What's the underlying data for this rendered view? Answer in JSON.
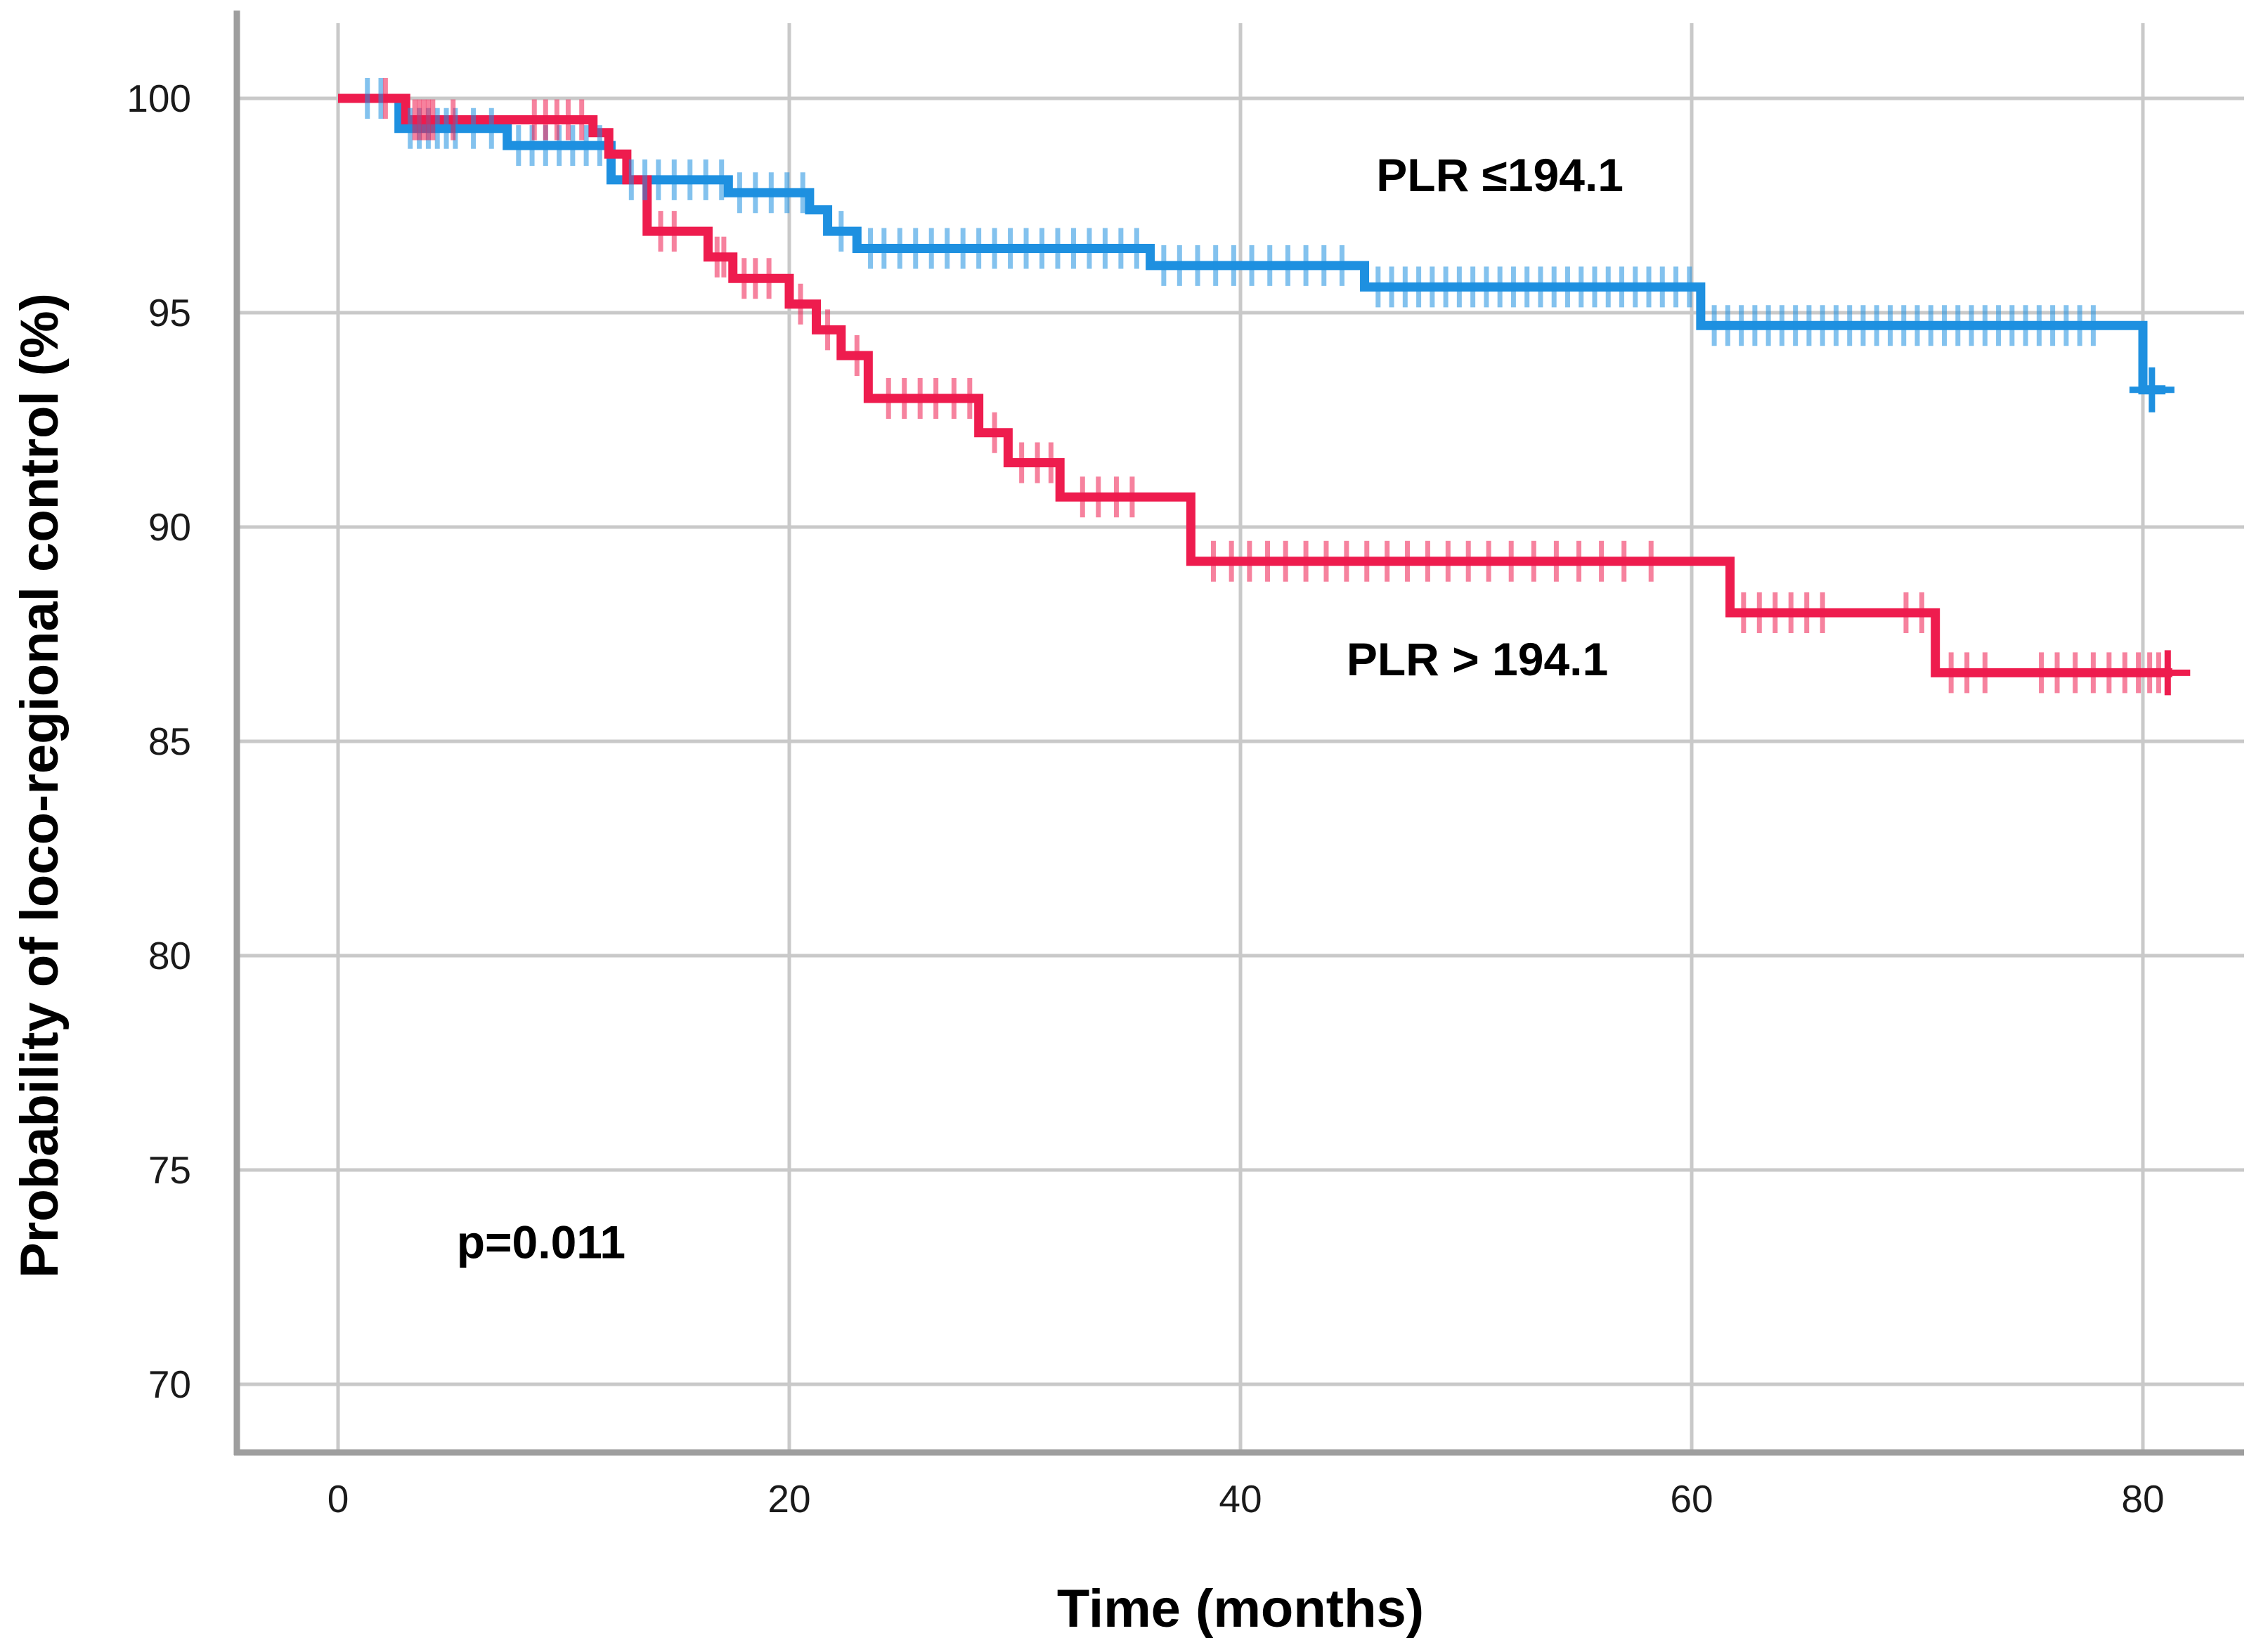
{
  "figure": {
    "x_axis_title": "Time (months)",
    "y_axis_title": "Probability of loco-regional control (%)",
    "p_value_label": "p=0.011",
    "series1_label": "PLR ≤194.1",
    "series2_label": "PLR > 194.1"
  },
  "chart_data": {
    "type": "line",
    "subtype": "kaplan-meier-step",
    "title": "",
    "xlabel": "Time (months)",
    "ylabel": "Probability of loco-regional control (%)",
    "xlim": [
      -4.5,
      84.6
    ],
    "ylim": [
      68.4,
      101.7
    ],
    "x_ticks": [
      0,
      20,
      40,
      60,
      80
    ],
    "y_ticks": [
      100,
      95,
      90,
      85,
      80,
      75,
      70
    ],
    "grid": true,
    "legend_position": "inline-labels",
    "annotation": {
      "text": "p=0.011",
      "x": 9.0,
      "y": 73.3
    },
    "colors": {
      "series1": "#1e90e0",
      "series2": "#ee1c4e",
      "gridline": "#c9c9c9",
      "axis_line": "#9e9e9e",
      "text": "#000000"
    },
    "series": [
      {
        "name": "PLR ≤194.1",
        "color": "#1e90e0",
        "label_pos": {
          "x": 51.5,
          "y": 98.2
        },
        "start_value": 100,
        "steps": [
          [
            2.7,
            99.3
          ],
          [
            7.5,
            98.9
          ],
          [
            12.1,
            98.1
          ],
          [
            17.3,
            97.8
          ],
          [
            20.9,
            97.4
          ],
          [
            21.7,
            96.9
          ],
          [
            23.0,
            96.5
          ],
          [
            36.0,
            96.1
          ],
          [
            45.5,
            95.6
          ],
          [
            60.4,
            94.7
          ],
          [
            80.0,
            93.2
          ]
        ],
        "end_time": 81.0,
        "censors": [
          1.3,
          1.9,
          3.2,
          3.6,
          4.0,
          4.4,
          4.8,
          5.2,
          6.0,
          6.8,
          8.0,
          8.6,
          9.2,
          9.8,
          10.4,
          11.0,
          11.6,
          13.0,
          13.6,
          14.2,
          14.9,
          15.6,
          16.3,
          17.0,
          17.8,
          18.5,
          19.2,
          19.9,
          20.6,
          22.3,
          23.6,
          24.2,
          24.9,
          25.6,
          26.3,
          27.0,
          27.7,
          28.4,
          29.1,
          29.8,
          30.5,
          31.2,
          31.9,
          32.6,
          33.3,
          34.0,
          34.7,
          35.4,
          36.6,
          37.3,
          38.1,
          38.9,
          39.7,
          40.5,
          41.3,
          42.1,
          42.9,
          43.7,
          44.5,
          46.1,
          46.7,
          47.3,
          47.9,
          48.5,
          49.1,
          49.7,
          50.3,
          50.9,
          51.5,
          52.1,
          52.7,
          53.3,
          53.9,
          54.5,
          55.1,
          55.7,
          56.3,
          56.9,
          57.5,
          58.1,
          58.7,
          59.3,
          59.9,
          61.0,
          61.6,
          62.2,
          62.8,
          63.4,
          64.0,
          64.6,
          65.2,
          65.8,
          66.4,
          67.0,
          67.6,
          68.2,
          68.8,
          69.4,
          70.0,
          70.6,
          71.2,
          71.8,
          72.4,
          73.0,
          73.6,
          74.2,
          74.8,
          75.4,
          76.0,
          76.6,
          77.2,
          77.8
        ],
        "end_censor": {
          "x": 80.4,
          "y": 93.2
        }
      },
      {
        "name": "PLR > 194.1",
        "color": "#ee1c4e",
        "label_pos": {
          "x": 50.5,
          "y": 86.9
        },
        "start_value": 100,
        "steps": [
          [
            3.0,
            99.5
          ],
          [
            11.3,
            99.2
          ],
          [
            12.0,
            98.7
          ],
          [
            12.8,
            98.1
          ],
          [
            13.7,
            96.9
          ],
          [
            16.4,
            96.3
          ],
          [
            17.5,
            95.8
          ],
          [
            20.0,
            95.2
          ],
          [
            21.2,
            94.6
          ],
          [
            22.3,
            94.0
          ],
          [
            23.5,
            93.0
          ],
          [
            28.4,
            92.2
          ],
          [
            29.7,
            91.5
          ],
          [
            32.0,
            90.7
          ],
          [
            37.8,
            89.2
          ],
          [
            61.7,
            88.0
          ],
          [
            70.8,
            86.6
          ]
        ],
        "end_time": 81.3,
        "censors": [
          2.1,
          3.4,
          3.6,
          3.8,
          4.0,
          4.2,
          5.1,
          8.7,
          9.2,
          9.7,
          10.2,
          10.8,
          14.3,
          14.9,
          16.8,
          17.1,
          18.0,
          18.5,
          19.1,
          20.5,
          21.7,
          23.0,
          24.4,
          25.1,
          25.8,
          26.5,
          27.3,
          28.0,
          29.1,
          30.3,
          31.0,
          31.6,
          33.0,
          33.7,
          34.5,
          35.2,
          38.8,
          39.6,
          40.4,
          41.2,
          42.0,
          42.9,
          43.8,
          44.7,
          45.6,
          46.5,
          47.4,
          48.3,
          49.2,
          50.1,
          51.0,
          52.0,
          53.0,
          54.0,
          55.0,
          56.0,
          57.0,
          58.2,
          62.3,
          63.0,
          63.7,
          64.4,
          65.1,
          65.8,
          69.5,
          70.2,
          71.5,
          72.2,
          73.0,
          75.5,
          76.2,
          77.0,
          77.8,
          78.5,
          79.2,
          79.8,
          80.3,
          80.7
        ],
        "end_censor": {
          "x": 81.1,
          "y": 86.6
        }
      }
    ]
  }
}
